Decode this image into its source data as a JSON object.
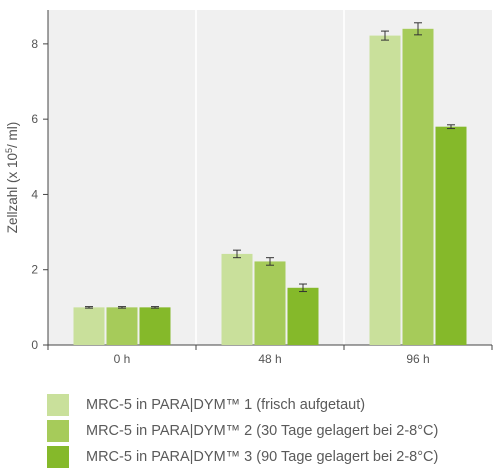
{
  "chart_data": {
    "type": "bar",
    "categories": [
      "0 h",
      "48 h",
      "96 h"
    ],
    "ylabel": "Zellzahl (x 10",
    "ylabel_sup": "5",
    "ylabel_tail": "/ ml)",
    "ylim": [
      0,
      8.9
    ],
    "yticks": [
      0,
      2,
      4,
      6,
      8
    ],
    "grid": true,
    "legend_position": "bottom",
    "series": [
      {
        "name": "MRC-5 in PARA|DYM™ 1 (frisch aufgetaut)",
        "color": "#c9e09b",
        "values": [
          1.0,
          2.42,
          8.22
        ],
        "errors": [
          0.02,
          0.1,
          0.12
        ]
      },
      {
        "name": "MRC-5 in PARA|DYM™ 2 (30 Tage gelagert bei 2-8°C)",
        "color": "#a6cb5a",
        "values": [
          1.0,
          2.22,
          8.4
        ],
        "errors": [
          0.02,
          0.1,
          0.16
        ]
      },
      {
        "name": "MRC-5 in PARA|DYM™ 3 (90 Tage gelagert bei 2-8°C)",
        "color": "#85b92a",
        "values": [
          1.0,
          1.52,
          5.8
        ],
        "errors": [
          0.02,
          0.1,
          0.05
        ]
      }
    ],
    "colors": {
      "plot_bg": "#f0f0f0",
      "grid": "#ffffff",
      "axis": "#444444",
      "text": "#555555"
    }
  }
}
